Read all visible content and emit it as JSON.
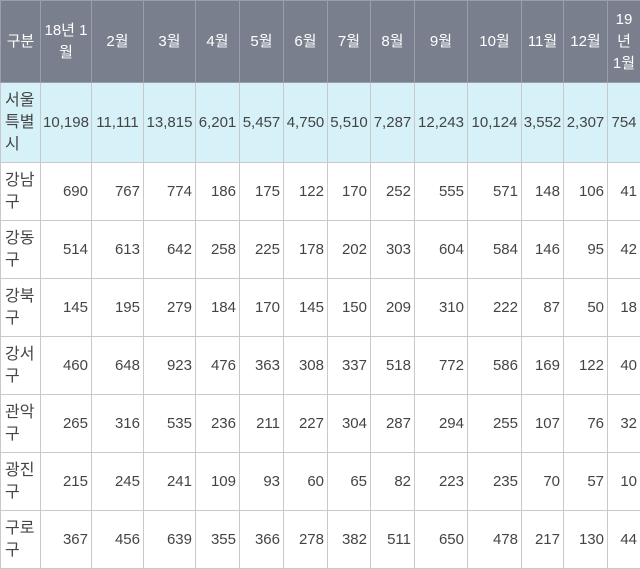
{
  "table": {
    "headers": [
      "구분",
      "18년 1월",
      "2월",
      "3월",
      "4월",
      "5월",
      "6월",
      "7월",
      "8월",
      "9월",
      "10월",
      "11월",
      "12월",
      "19년 1월"
    ],
    "rows": [
      {
        "label": "서울특별시",
        "values": [
          "10,198",
          "11,111",
          "13,815",
          "6,201",
          "5,457",
          "4,750",
          "5,510",
          "7,287",
          "12,243",
          "10,124",
          "3,552",
          "2,307",
          "754"
        ]
      },
      {
        "label": "강남구",
        "values": [
          "690",
          "767",
          "774",
          "186",
          "175",
          "122",
          "170",
          "252",
          "555",
          "571",
          "148",
          "106",
          "41"
        ]
      },
      {
        "label": "강동구",
        "values": [
          "514",
          "613",
          "642",
          "258",
          "225",
          "178",
          "202",
          "303",
          "604",
          "584",
          "146",
          "95",
          "42"
        ]
      },
      {
        "label": "강북구",
        "values": [
          "145",
          "195",
          "279",
          "184",
          "170",
          "145",
          "150",
          "209",
          "310",
          "222",
          "87",
          "50",
          "18"
        ]
      },
      {
        "label": "강서구",
        "values": [
          "460",
          "648",
          "923",
          "476",
          "363",
          "308",
          "337",
          "518",
          "772",
          "586",
          "169",
          "122",
          "40"
        ]
      },
      {
        "label": "관악구",
        "values": [
          "265",
          "316",
          "535",
          "236",
          "211",
          "227",
          "304",
          "287",
          "294",
          "255",
          "107",
          "76",
          "32"
        ]
      },
      {
        "label": "광진구",
        "values": [
          "215",
          "245",
          "241",
          "109",
          "93",
          "60",
          "65",
          "82",
          "223",
          "235",
          "70",
          "57",
          "10"
        ]
      },
      {
        "label": "구로구",
        "values": [
          "367",
          "456",
          "639",
          "355",
          "366",
          "278",
          "382",
          "511",
          "650",
          "478",
          "217",
          "130",
          "44"
        ]
      }
    ]
  }
}
